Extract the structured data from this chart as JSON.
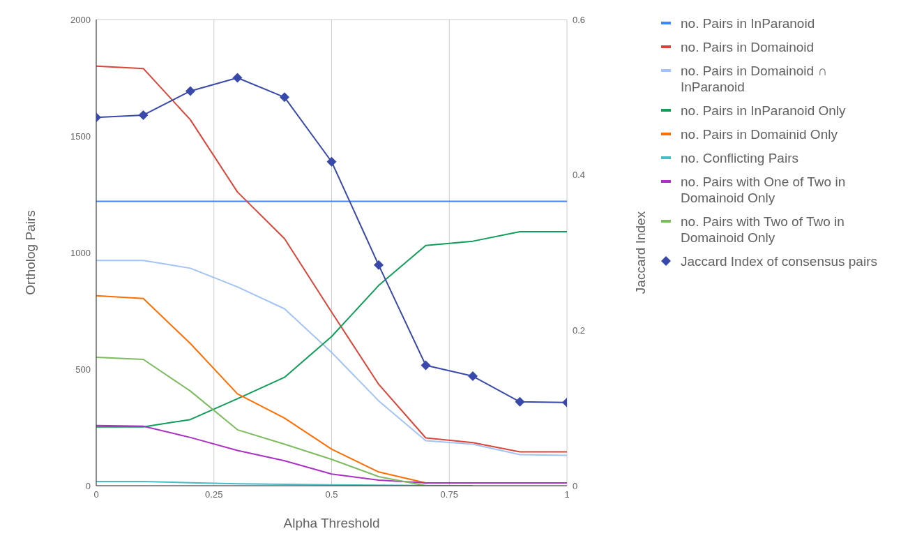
{
  "chart_data": {
    "type": "line",
    "xlabel": "Alpha Threshold",
    "ylabel": "Ortholog Pairs",
    "y2label": "Jaccard Index",
    "x": [
      0,
      0.1,
      0.2,
      0.3,
      0.4,
      0.5,
      0.6,
      0.7,
      0.8,
      0.9,
      1
    ],
    "xlim": [
      0,
      1
    ],
    "xticks": [
      0,
      0.25,
      0.5,
      0.75,
      1
    ],
    "ylim": [
      0,
      2000
    ],
    "yticks": [
      0,
      500,
      1000,
      1500,
      2000
    ],
    "y2lim": [
      0,
      0.6
    ],
    "y2ticks": [
      0,
      0.2,
      0.4,
      0.6
    ],
    "grid": true,
    "legend": "right",
    "marker": "none",
    "line_style": "solid",
    "series": [
      {
        "name": "no. Pairs in InParanoid",
        "color": "#4285f4",
        "values": [
          1220,
          1220,
          1220,
          1220,
          1220,
          1220,
          1220,
          1220,
          1220,
          1220,
          1220
        ]
      },
      {
        "name": "no. Pairs in Domainoid",
        "color": "#db4437",
        "values": [
          1800,
          1790,
          1570,
          1260,
          1060,
          745,
          435,
          205,
          185,
          145,
          145
        ]
      },
      {
        "name": "no. Pairs in Domainoid ∩ InParanoid",
        "color": "#a3c3f7",
        "values": [
          966,
          966,
          933,
          853,
          759,
          572,
          364,
          193,
          178,
          133,
          130
        ]
      },
      {
        "name": "no. Pairs in InParanoid Only",
        "color": "#0f9d58",
        "values": [
          252,
          252,
          284,
          373,
          465,
          640,
          859,
          1031,
          1049,
          1090,
          1090
        ]
      },
      {
        "name": "no. Pairs in Domainid Only",
        "color": "#ff6d00",
        "values": [
          815,
          803,
          610,
          394,
          290,
          157,
          59,
          12,
          null,
          null,
          null
        ]
      },
      {
        "name": "no. Conflicting Pairs",
        "color": "#46bdc6",
        "values": [
          18,
          18,
          13,
          8,
          6,
          4,
          2,
          1,
          0,
          null,
          null
        ]
      },
      {
        "name": "no. Pairs with One of Two in Domainoid Only",
        "color": "#ab30c4",
        "values": [
          258,
          255,
          207,
          151,
          107,
          50,
          24,
          12,
          12,
          12,
          12
        ]
      },
      {
        "name": "no. Pairs with Two of Two in Domainoid Only",
        "color": "#7cbb5e",
        "values": [
          551,
          542,
          406,
          240,
          178,
          113,
          39,
          0,
          0,
          null,
          null
        ]
      },
      {
        "name": "Jaccard Index of consensus pairs",
        "color": "#3949ab",
        "axis": "y2",
        "marker": "diamond",
        "values": [
          0.474,
          0.477,
          0.508,
          0.525,
          0.5,
          0.417,
          0.284,
          0.155,
          0.141,
          0.108,
          0.107
        ]
      }
    ]
  }
}
